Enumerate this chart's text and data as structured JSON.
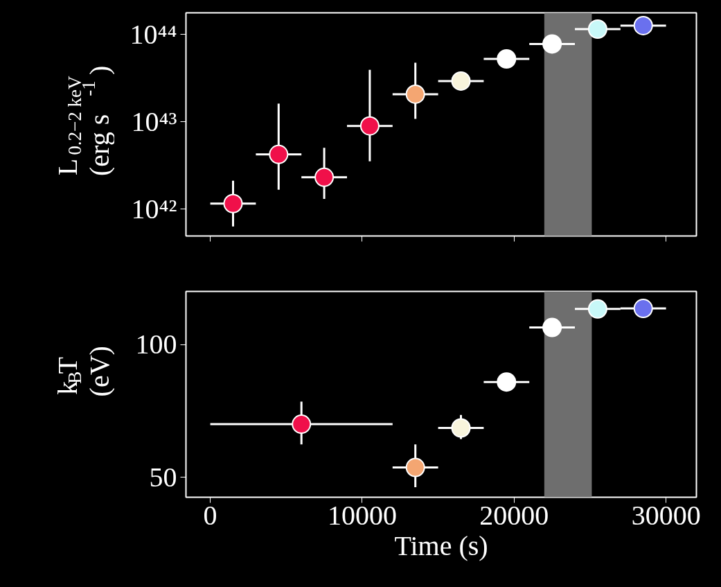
{
  "chart_data": [
    {
      "type": "scatter",
      "ylabel": "L$_{0.2−2 keV}$\n(erg s$^{-1}$)",
      "log": "y",
      "xlim": [
        -1600,
        32000
      ],
      "xticks": [
        0,
        10000,
        20000,
        30000
      ],
      "ylim": [
        4.9e+41,
        1.75e+44
      ],
      "yticks": [
        {
          "value": 1e+42,
          "label": "10⁴²"
        },
        {
          "value": 1e+43,
          "label": "10⁴³"
        },
        {
          "value": 1e+44,
          "label": "10⁴⁴"
        }
      ],
      "tick_labels": "y",
      "grid": false,
      "marker": "circle",
      "x": [
        1500,
        4500,
        7500,
        10500,
        13500,
        16500,
        19500,
        22500,
        25500,
        28500
      ],
      "values": [
        1.15e+42,
        4.2e+42,
        2.3e+42,
        8.9e+42,
        2.05e+43,
        2.9e+43,
        5.2e+43,
        7.7e+43,
        1.14e+44,
        1.25e+44
      ],
      "errors": [
        [
          6.3e+41,
          2.1e+42
        ],
        [
          1.66e+42,
          1.6e+43
        ],
        [
          1.3e+42,
          5e+42
        ],
        [
          3.5e+42,
          3.9e+43
        ],
        [
          1.07e+43,
          4.7e+43
        ],
        null,
        null,
        null,
        null,
        null
      ],
      "xerrors": [
        1500,
        1500,
        1500,
        1500,
        1500,
        1500,
        1500,
        1500,
        1500,
        1500
      ],
      "colors": [
        "#f0104a",
        "#f0104a",
        "#f0104a",
        "#f0104a",
        "#f4a672",
        "#f8f4dc",
        "#ffffff",
        "#ffffff",
        "#c8f8f8",
        "#6a70ee"
      ],
      "bands": [
        {
          "axis": "x",
          "from": 22000,
          "to": 25100,
          "color": "#6e6e6e"
        }
      ]
    },
    {
      "type": "scatter",
      "ylabel": "k$_{B}$T\n(eV)",
      "xlabel": "Time (s)",
      "xlim": [
        -1600,
        32000
      ],
      "xticks": [
        0,
        10000,
        20000,
        30000
      ],
      "ylim": [
        42.5,
        120
      ],
      "yticks": [
        50,
        100
      ],
      "grid": false,
      "marker": "circle",
      "x": [
        6000,
        13500,
        16500,
        19500,
        22500,
        25500,
        28500
      ],
      "values": [
        70,
        53.7,
        68.6,
        85.9,
        106.4,
        113.4,
        113.6
      ],
      "errors": [
        [
          62.4,
          78.5
        ],
        [
          46.3,
          62.4
        ],
        [
          64.4,
          73.5
        ],
        null,
        null,
        null,
        null
      ],
      "xerrors": [
        6000,
        1500,
        1500,
        1500,
        1500,
        1500,
        1500
      ],
      "colors": [
        "#f0104a",
        "#f4a672",
        "#f8f4dc",
        "#ffffff",
        "#ffffff",
        "#c8f8f8",
        "#6a70ee"
      ],
      "bands": [
        {
          "axis": "x",
          "from": 22000,
          "to": 25100,
          "color": "#6e6e6e"
        }
      ]
    }
  ]
}
